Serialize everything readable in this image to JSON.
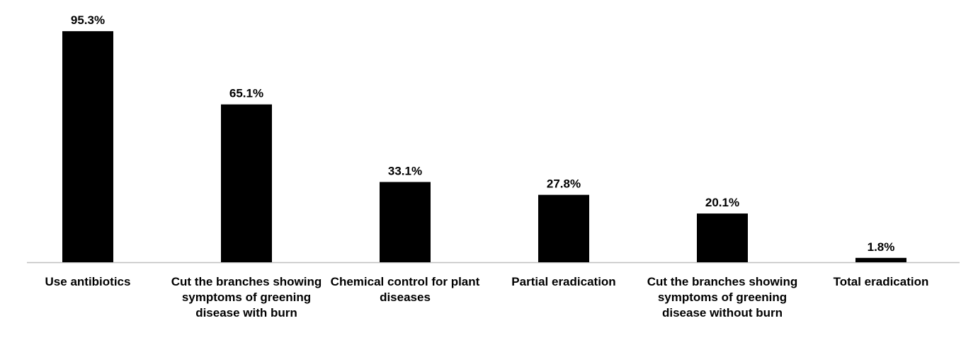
{
  "chart_data": {
    "type": "bar",
    "categories": [
      "Use antibiotics",
      "Cut the branches showing symptoms of greening disease with burn",
      "Chemical control for plant diseases",
      "Partial eradication",
      "Cut the branches showing symptoms of greening disease without burn",
      "Total eradication"
    ],
    "values": [
      95.3,
      65.1,
      33.1,
      27.8,
      20.1,
      1.8
    ],
    "value_labels": [
      "95.3%",
      "65.1%",
      "33.1%",
      "27.8%",
      "20.1%",
      "1.8%"
    ],
    "color": "#000000"
  }
}
